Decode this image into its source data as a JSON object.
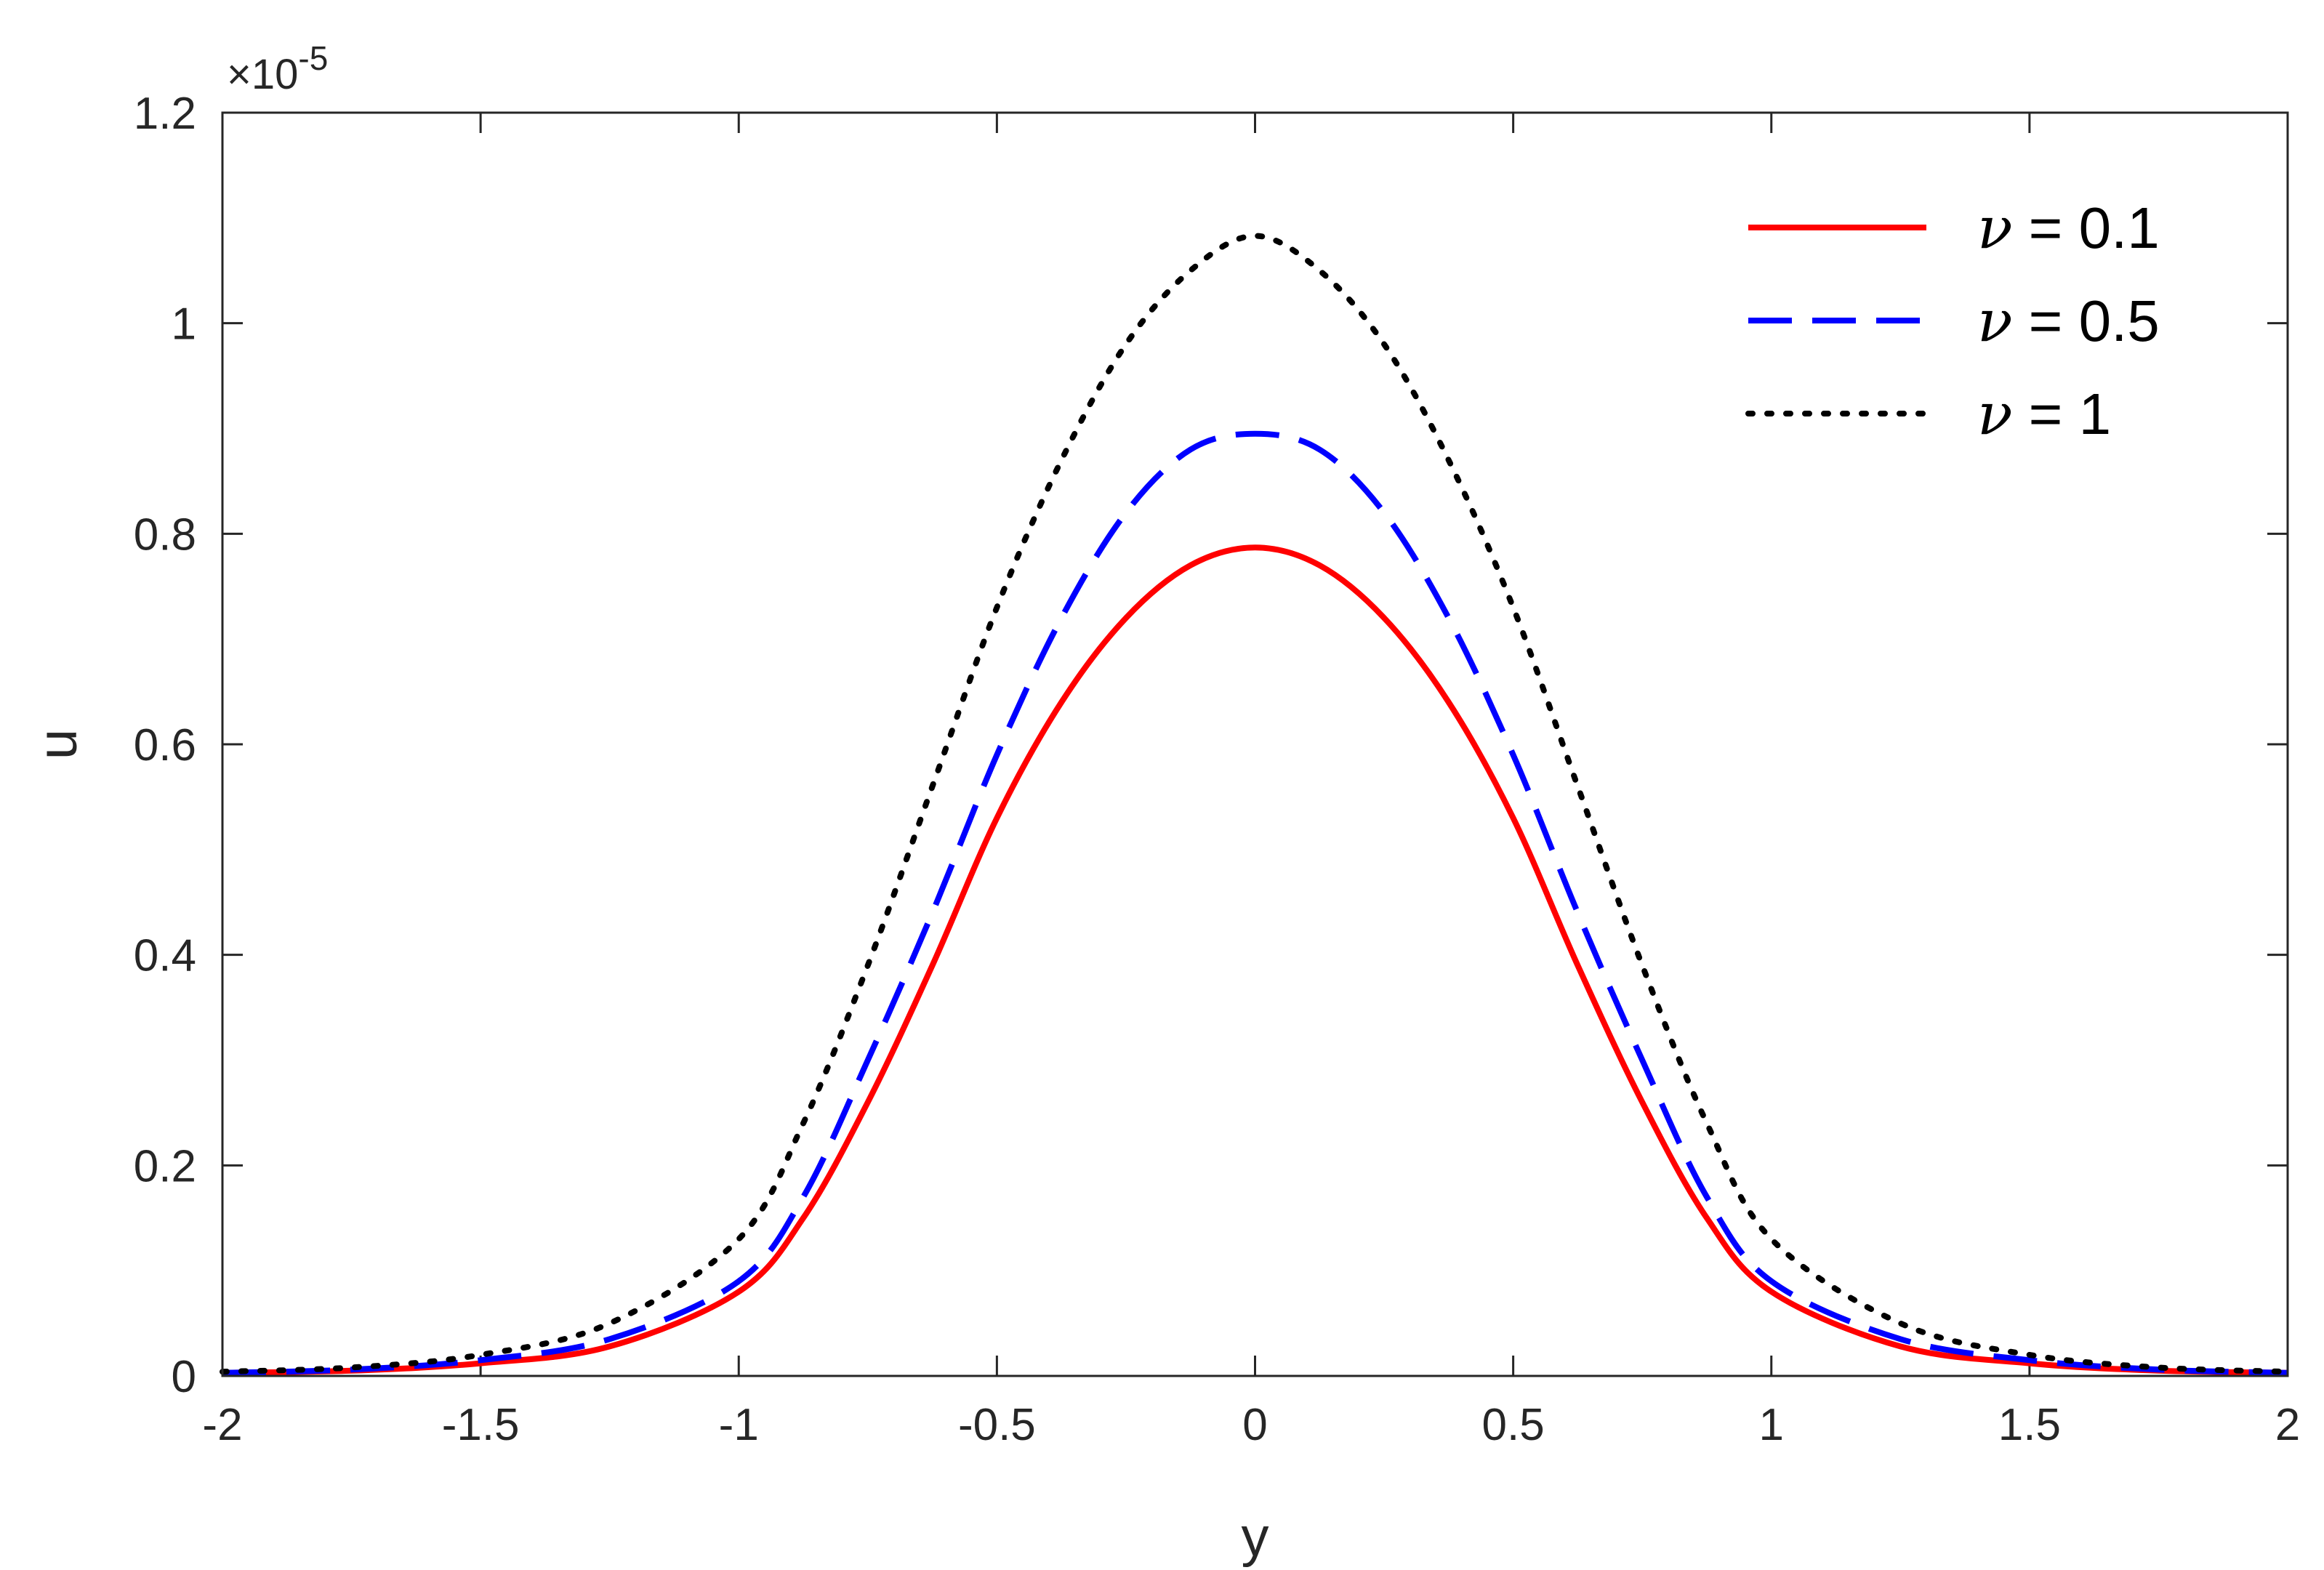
{
  "chart_data": {
    "type": "line",
    "xlabel": "y",
    "ylabel": "u",
    "xlim": [
      -2,
      2
    ],
    "ylim": [
      0,
      1.2
    ],
    "xticks": [
      -2,
      -1.5,
      -1,
      -0.5,
      0,
      0.5,
      1,
      1.5,
      2
    ],
    "xtick_labels": [
      "-2",
      "-1.5",
      "-1",
      "-0.5",
      "0",
      "0.5",
      "1",
      "1.5",
      "2"
    ],
    "yticks": [
      0,
      0.2,
      0.4,
      0.6,
      0.8,
      1,
      1.2
    ],
    "ytick_labels": [
      "0",
      "0.2",
      "0.4",
      "0.6",
      "0.8",
      "1",
      "1.2"
    ],
    "y_scale_multiplier": {
      "base": "×10",
      "exponent": "-5"
    },
    "grid": false,
    "legend_position": "top-right",
    "x": [
      -2,
      -1.75,
      -1.5,
      -1.25,
      -1,
      -0.875,
      -0.75,
      -0.625,
      -0.5,
      -0.375,
      -0.25,
      -0.125,
      0,
      0.125,
      0.25,
      0.375,
      0.5,
      0.625,
      0.75,
      0.875,
      1,
      1.25,
      1.5,
      1.75,
      2
    ],
    "series": [
      {
        "name": "ν = 0.1",
        "symbol": "ν",
        "label": "= 0.1",
        "color": "#ff0000",
        "style": "solid",
        "values": [
          0.003,
          0.005,
          0.012,
          0.028,
          0.08,
          0.15,
          0.26,
          0.39,
          0.53,
          0.64,
          0.72,
          0.77,
          0.787,
          0.77,
          0.72,
          0.64,
          0.53,
          0.39,
          0.26,
          0.15,
          0.08,
          0.028,
          0.012,
          0.005,
          0.003
        ]
      },
      {
        "name": "ν = 0.5",
        "symbol": "ν",
        "label": "= 0.5",
        "color": "#0000ff",
        "style": "dashed",
        "values": [
          0.003,
          0.006,
          0.015,
          0.035,
          0.09,
          0.17,
          0.3,
          0.44,
          0.59,
          0.72,
          0.82,
          0.88,
          0.895,
          0.88,
          0.82,
          0.72,
          0.59,
          0.44,
          0.3,
          0.17,
          0.09,
          0.035,
          0.015,
          0.006,
          0.003
        ]
      },
      {
        "name": "ν = 1",
        "symbol": "ν",
        "label": "= 1",
        "color": "#000000",
        "style": "dotted",
        "values": [
          0.004,
          0.008,
          0.02,
          0.05,
          0.13,
          0.24,
          0.39,
          0.56,
          0.73,
          0.87,
          0.98,
          1.05,
          1.083,
          1.05,
          0.98,
          0.87,
          0.73,
          0.56,
          0.39,
          0.24,
          0.13,
          0.05,
          0.02,
          0.008,
          0.004
        ]
      }
    ]
  }
}
